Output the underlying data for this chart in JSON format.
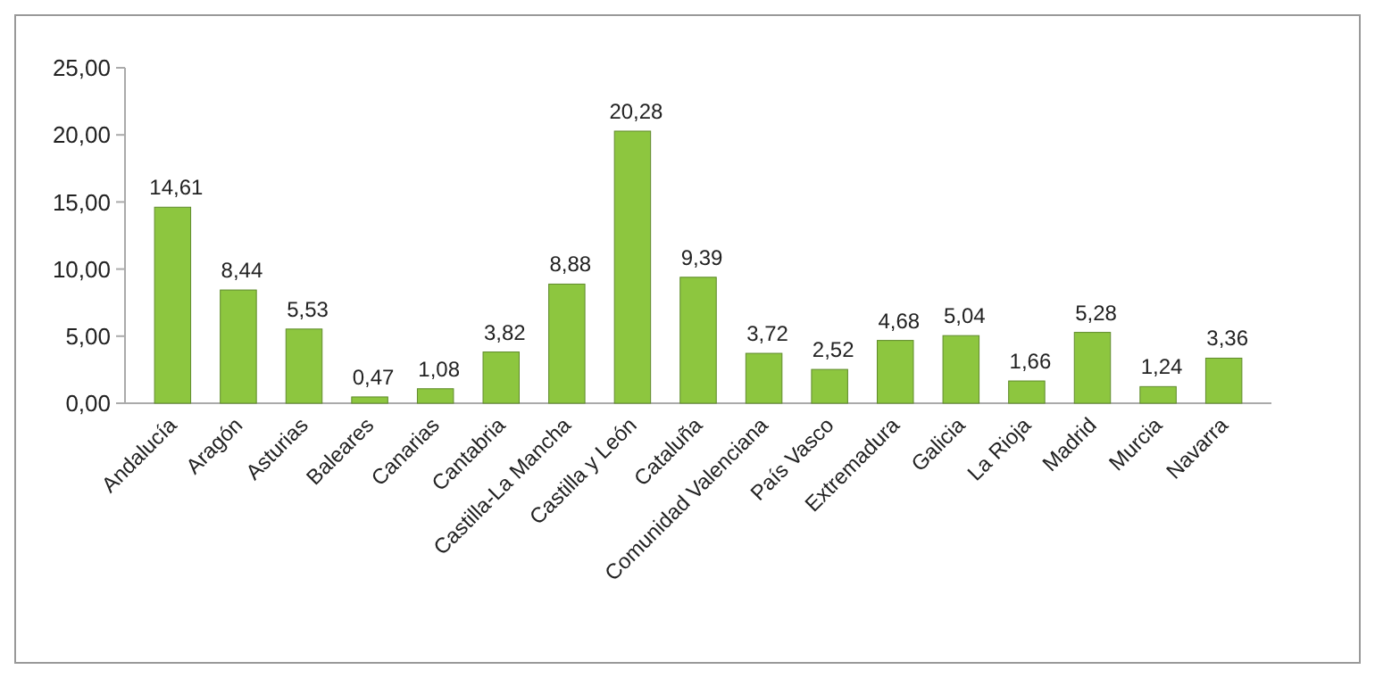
{
  "chart_data": {
    "type": "bar",
    "categories": [
      "Andalucía",
      "Aragón",
      "Asturias",
      "Baleares",
      "Canarias",
      "Cantabria",
      "Castilla-La Mancha",
      "Castilla y León",
      "Cataluña",
      "Comunidad Valenciana",
      "País Vasco",
      "Extremadura",
      "Galicia",
      "La Rioja",
      "Madrid",
      "Murcia",
      "Navarra"
    ],
    "values": [
      14.61,
      8.44,
      5.53,
      0.47,
      1.08,
      3.82,
      8.88,
      20.28,
      9.39,
      3.72,
      2.52,
      4.68,
      5.04,
      1.66,
      5.28,
      1.24,
      3.36
    ],
    "value_labels": [
      "14,61",
      "8,44",
      "5,53",
      "0,47",
      "1,08",
      "3,82",
      "8,88",
      "20,28",
      "9,39",
      "3,72",
      "2,52",
      "4,68",
      "5,04",
      "1,66",
      "5,28",
      "1,24",
      "3,36"
    ],
    "color": "#8dc63f",
    "ylim": [
      0,
      25
    ],
    "yticks": [
      {
        "value": 0,
        "label": "0,00"
      },
      {
        "value": 5,
        "label": "5,00"
      },
      {
        "value": 10,
        "label": "10,00"
      },
      {
        "value": 15,
        "label": "15,00"
      },
      {
        "value": 20,
        "label": "20,00"
      },
      {
        "value": 25,
        "label": "25,00"
      }
    ],
    "grid": false
  }
}
